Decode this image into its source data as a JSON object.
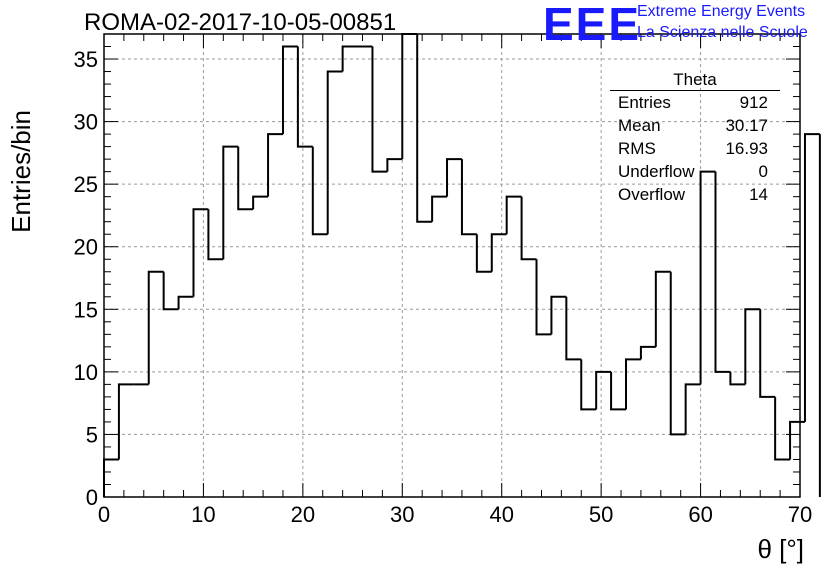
{
  "run_title": "ROMA-02-2017-10-05-00851",
  "logo": {
    "mark": "EEE",
    "line1": "Extreme Energy Events",
    "line2": "La Scienza nelle Scuole"
  },
  "stats_box": {
    "name": "Theta",
    "rows": [
      {
        "key": "Entries",
        "value": "912"
      },
      {
        "key": "Mean",
        "value": "30.17"
      },
      {
        "key": "RMS",
        "value": "16.93"
      },
      {
        "key": "Underflow",
        "value": "0"
      },
      {
        "key": "Overflow",
        "value": "14"
      }
    ]
  },
  "chart_data": {
    "type": "bar",
    "style": "step-histogram",
    "title": "ROMA-02-2017-10-05-00851",
    "xlabel": "θ [°]",
    "ylabel": "Entries/bin",
    "xlim": [
      0,
      70
    ],
    "ylim": [
      0,
      37
    ],
    "bin_width": 1.5,
    "bin_start": 0,
    "grid": true,
    "xticks": [
      0,
      10,
      20,
      30,
      40,
      50,
      60,
      70
    ],
    "yticks": [
      0,
      5,
      10,
      15,
      20,
      25,
      30,
      35
    ],
    "values": [
      3,
      9,
      9,
      18,
      15,
      16,
      23,
      19,
      28,
      23,
      24,
      29,
      36,
      28,
      21,
      34,
      36,
      36,
      26,
      27,
      37,
      22,
      24,
      27,
      21,
      18,
      21,
      24,
      19,
      13,
      16,
      11,
      7,
      10,
      7,
      11,
      12,
      18,
      5,
      9,
      26,
      10,
      9,
      15,
      8,
      3,
      6,
      29
    ]
  }
}
